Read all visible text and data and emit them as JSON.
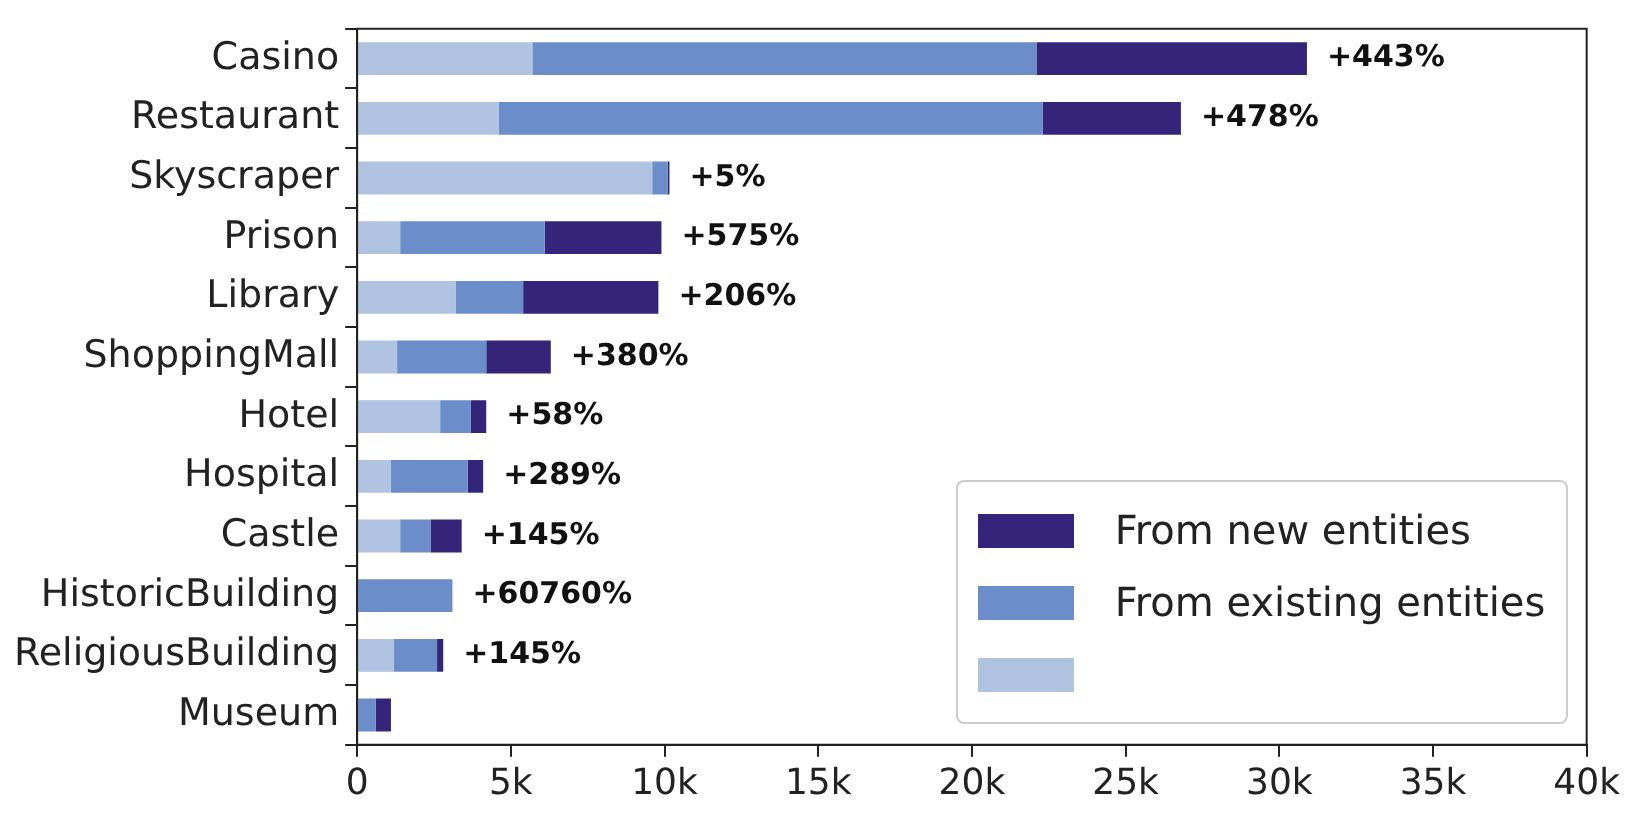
{
  "chart_data": {
    "type": "bar",
    "orientation": "horizontal",
    "stacked": true,
    "categories": [
      "Casino",
      "Restaurant",
      "Skyscraper",
      "Prison",
      "Library",
      "ShoppingMall",
      "Hotel",
      "Hospital",
      "Castle",
      "HistoricBuilding",
      "ReligiousBuilding",
      "Museum"
    ],
    "series": [
      {
        "color": "#b0c4e2",
        "values": [
          5.7,
          4.6,
          9.6,
          1.4,
          3.2,
          1.3,
          2.7,
          1.1,
          1.4,
          0,
          1.2,
          0
        ]
      },
      {
        "name": "From existing entities",
        "color": "#6b8dc9",
        "values": [
          16.4,
          17.7,
          0.5,
          4.7,
          2.2,
          2.9,
          1.0,
          2.5,
          1.0,
          3.1,
          1.4,
          0.6
        ]
      },
      {
        "name": "From new entities",
        "color": "#35257a",
        "values": [
          8.8,
          4.5,
          0.06,
          3.8,
          4.4,
          2.1,
          0.5,
          0.5,
          1.0,
          0,
          0.2,
          0.5
        ]
      }
    ],
    "annotations": [
      {
        "text": "+443%",
        "x": 30.9,
        "y": "Casino"
      },
      {
        "text": "+478%",
        "x": 26.8,
        "y": "Restaurant"
      },
      {
        "text": "+5%",
        "x": 10.16,
        "y": "Skyscraper"
      },
      {
        "text": "+575%",
        "x": 9.9,
        "y": "Prison"
      },
      {
        "text": "+206%",
        "x": 9.8,
        "y": "Library"
      },
      {
        "text": "+380%",
        "x": 6.3,
        "y": "ShoppingMall"
      },
      {
        "text": "+58%",
        "x": 4.2,
        "y": "Hotel"
      },
      {
        "text": "+289%",
        "x": 4.1,
        "y": "Hospital"
      },
      {
        "text": "+145%",
        "x": 3.4,
        "y": "Castle"
      },
      {
        "text": "+60760%",
        "x": 3.1,
        "y": "HistoricBuilding"
      },
      {
        "text": "+145%",
        "x": 2.8,
        "y": "ReligiousBuilding"
      }
    ],
    "xlim": [
      0,
      40
    ],
    "xticks": [
      {
        "value": 0,
        "label": "0"
      },
      {
        "value": 5,
        "label": "5k"
      },
      {
        "value": 10,
        "label": "10k"
      },
      {
        "value": 15,
        "label": "15k"
      },
      {
        "value": 20,
        "label": "20k"
      },
      {
        "value": 25,
        "label": "25k"
      },
      {
        "value": 30,
        "label": "30k"
      },
      {
        "value": 35,
        "label": "35k"
      },
      {
        "value": 40,
        "label": "40k"
      }
    ],
    "grid": false,
    "legend": "bottom right"
  }
}
